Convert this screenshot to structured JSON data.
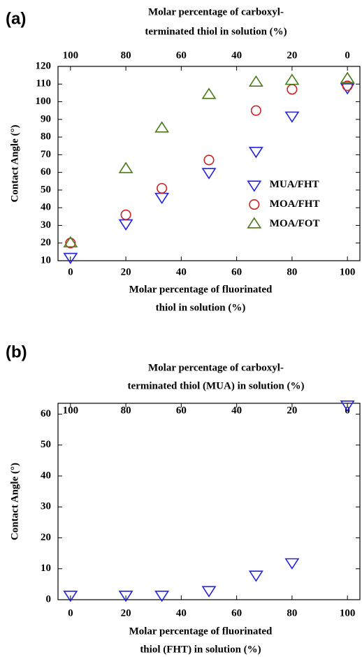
{
  "chart_data": [
    {
      "type": "scatter",
      "panel_label": "(a)",
      "top_xlabel": [
        "Molar percentage of carboxyl-",
        "terminated thiol in solution (%)"
      ],
      "xlabel": [
        "Molar percentage of fluorinated",
        "thiol  in solution (%)"
      ],
      "ylabel": "Contact Angle (°)",
      "x": [
        0,
        20,
        33,
        50,
        67,
        80,
        100
      ],
      "xlim": [
        -4.5,
        104.5
      ],
      "xticks": [
        0,
        20,
        40,
        60,
        80,
        100
      ],
      "x2lim": [
        104.5,
        -4.5
      ],
      "x2ticks": [
        100,
        80,
        60,
        40,
        20,
        0
      ],
      "ylim": [
        10,
        120
      ],
      "yticks": [
        10,
        20,
        30,
        40,
        50,
        60,
        70,
        80,
        90,
        100,
        110,
        120
      ],
      "legend": "lower right",
      "grid": false,
      "series": [
        {
          "name": "MUA/FHT",
          "color": "#2222dd",
          "marker": "triangle-down",
          "values": [
            12,
            31,
            46,
            60,
            72,
            92,
            108
          ]
        },
        {
          "name": "MOA/FHT",
          "color": "#cc2222",
          "marker": "circle",
          "values": [
            20,
            36,
            51,
            67,
            95,
            107,
            109
          ]
        },
        {
          "name": "MOA/FOT",
          "color": "#4a7a1a",
          "marker": "triangle-up",
          "values": [
            20,
            62,
            85,
            104,
            111,
            112,
            113
          ]
        }
      ]
    },
    {
      "type": "scatter",
      "panel_label": "(b)",
      "top_xlabel": [
        "Molar  percentage of carboxyl-",
        "terminated thiol (MUA) in solution (%)"
      ],
      "xlabel": [
        "Molar percentage of fluorinated",
        "thiol (FHT) in solution (%)"
      ],
      "ylabel": "Contact Angle (°)",
      "x": [
        0,
        20,
        33,
        50,
        67,
        80,
        100
      ],
      "xlim": [
        -4.5,
        104.5
      ],
      "xticks": [
        0,
        20,
        40,
        60,
        80,
        100
      ],
      "x2lim": [
        104.5,
        -4.5
      ],
      "x2ticks": [
        100,
        80,
        60,
        40,
        20,
        0
      ],
      "ylim": [
        0,
        63.5
      ],
      "yticks": [
        0,
        10,
        20,
        30,
        40,
        50,
        60
      ],
      "grid": false,
      "series": [
        {
          "color": "#2222dd",
          "marker": "triangle-down",
          "values": [
            1.5,
            1.5,
            1.5,
            3,
            8,
            12,
            63
          ]
        }
      ]
    }
  ]
}
